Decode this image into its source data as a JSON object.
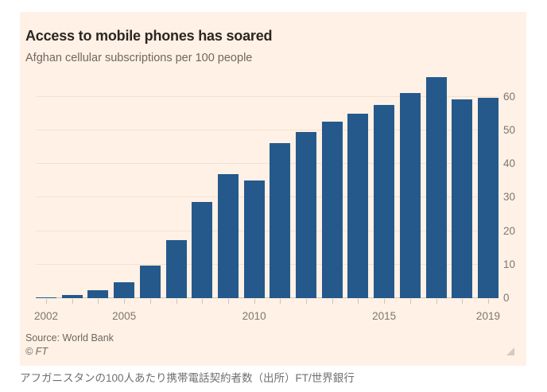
{
  "header": {
    "title": "Access to mobile phones has soared",
    "subtitle": "Afghan cellular subscriptions per 100 people"
  },
  "footer": {
    "source": "Source: World Bank",
    "copyright": "© FT"
  },
  "caption": "アフガニスタンの100人あたり携帯電話契約者数（出所）FT/世界銀行",
  "colors": {
    "page_bg": "#ffffff",
    "card_bg": "#fff1e5",
    "bar": "#25598c",
    "grid": "#f1e1d0",
    "axis": "#ccc3b7",
    "title_text": "#2b2622",
    "muted_text": "#6e6760",
    "tick_text": "#7e7770",
    "caption_text": "#6f6f6f",
    "handle": "#b3a99d"
  },
  "chart_data": {
    "type": "bar",
    "title": "Access to mobile phones has soared",
    "subtitle": "Afghan cellular subscriptions per 100 people",
    "categories": [
      2002,
      2003,
      2004,
      2005,
      2006,
      2007,
      2008,
      2009,
      2010,
      2011,
      2012,
      2013,
      2014,
      2015,
      2016,
      2017,
      2018,
      2019
    ],
    "values": [
      0.2,
      0.9,
      2.4,
      4.8,
      9.8,
      17.2,
      28.7,
      37.0,
      35.1,
      46.2,
      49.4,
      52.6,
      55.0,
      57.6,
      61.2,
      65.9,
      59.1,
      59.8
    ],
    "xlabel": "",
    "ylabel": "",
    "xticks": [
      "2002",
      "2005",
      "2010",
      "2015",
      "2019"
    ],
    "yticks": [
      0,
      10,
      20,
      30,
      40,
      50,
      60
    ],
    "ylim": [
      0,
      67.5
    ],
    "grid": true,
    "legend": false,
    "y_axis_position": "right",
    "bar_color": "#25598c",
    "source": "Source: World Bank"
  }
}
